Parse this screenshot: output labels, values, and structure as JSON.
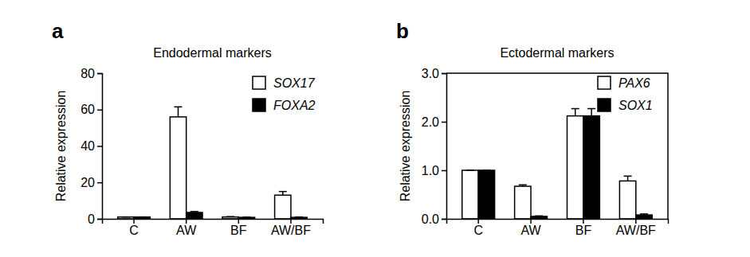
{
  "chart_data": [
    {
      "type": "bar",
      "annotations": [
        "a"
      ],
      "title": "Endodermal markers",
      "y_label": "Relative expression",
      "categories": [
        "C",
        "AW",
        "BF",
        "AW/BF"
      ],
      "series": [
        {
          "name": "SOX17",
          "color": "#ffffff",
          "values": [
            1,
            56,
            1,
            13
          ],
          "errors": [
            0,
            5.5,
            0.2,
            2
          ]
        },
        {
          "name": "FOXA2",
          "color": "#000000",
          "values": [
            1,
            3.5,
            0.8,
            0.8
          ],
          "errors": [
            0,
            0.5,
            0.1,
            0.2
          ]
        }
      ],
      "ylim": [
        0,
        80
      ],
      "yticks": [
        0,
        20,
        40,
        60,
        80
      ],
      "legend": "upper right"
    },
    {
      "type": "bar",
      "annotations": [
        "b"
      ],
      "title": "Ectodermal markers",
      "y_label": "Relative expression",
      "categories": [
        "C",
        "AW",
        "BF",
        "AW/BF"
      ],
      "series": [
        {
          "name": "PAX6",
          "color": "#ffffff",
          "values": [
            1,
            0.67,
            2.12,
            0.78
          ],
          "errors": [
            0,
            0.03,
            0.15,
            0.1
          ]
        },
        {
          "name": "SOX1",
          "color": "#000000",
          "values": [
            1,
            0.05,
            2.12,
            0.08
          ],
          "errors": [
            0,
            0.01,
            0.15,
            0.02
          ]
        }
      ],
      "ylim": [
        0,
        3
      ],
      "yticks": [
        {
          "value": 0,
          "label": "0.0"
        },
        {
          "value": 1,
          "label": "1.0"
        },
        {
          "value": 2,
          "label": "2.0"
        },
        {
          "value": 3,
          "label": "3.0"
        }
      ],
      "legend": "upper right"
    }
  ]
}
